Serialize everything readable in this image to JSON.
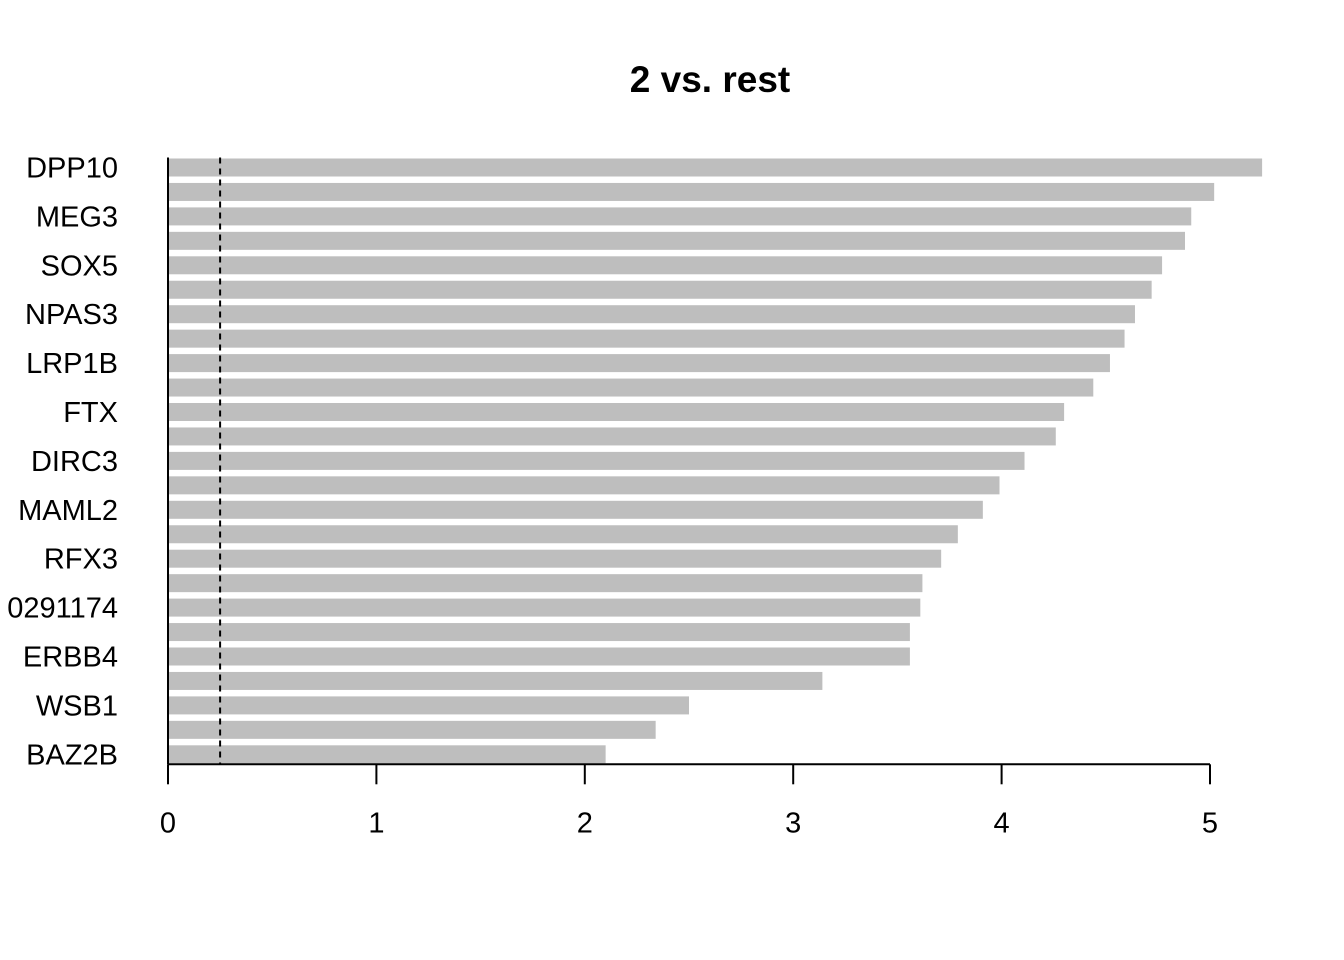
{
  "chart_data": {
    "type": "bar",
    "orientation": "horizontal",
    "title": "2 vs. rest",
    "xlabel": "",
    "ylabel": "",
    "xlim": [
      0,
      5.25
    ],
    "x_ticks": [
      "0",
      "1",
      "2",
      "3",
      "4",
      "5"
    ],
    "reference_line": {
      "value": 0.25,
      "style": "dashed"
    },
    "categories": [
      "DPP10",
      "",
      "MEG3",
      "",
      "SOX5",
      "",
      "NPAS3",
      "",
      "LRP1B",
      "",
      "FTX",
      "",
      "DIRC3",
      "",
      "MAML2",
      "",
      "RFX3",
      "",
      "0291174",
      "",
      "ERBB4",
      "",
      "WSB1",
      "",
      "BAZ2B"
    ],
    "values": [
      5.25,
      5.02,
      4.91,
      4.88,
      4.77,
      4.72,
      4.64,
      4.59,
      4.52,
      4.44,
      4.3,
      4.26,
      4.11,
      3.99,
      3.91,
      3.79,
      3.71,
      3.62,
      3.61,
      3.56,
      3.56,
      3.14,
      2.5,
      2.34,
      2.1
    ],
    "bar_color": "#bebebe",
    "grid": false
  }
}
